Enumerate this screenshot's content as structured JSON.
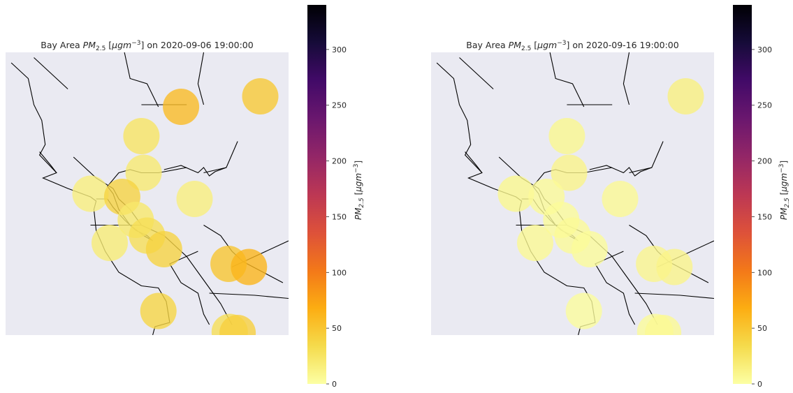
{
  "chart_data": {
    "type": "map-scatter",
    "colormap": "inferno_r",
    "colorbar": {
      "min": 0,
      "max": 340,
      "ticks": [
        0,
        50,
        100,
        150,
        200,
        250,
        300
      ],
      "label": "PM2.5 [μgm⁻³]",
      "label_parts": [
        "PM",
        "2.5",
        " [",
        "μgm",
        "−3",
        "]"
      ]
    },
    "background": "#eaeaf2",
    "marker_alpha": 0.8,
    "panels": [
      {
        "title_parts": [
          "Bay Area ",
          "PM",
          "2.5",
          " [",
          "μgm",
          "−3",
          "] on 2020-09-06 19:00:00"
        ],
        "stations": [
          {
            "lon": -122.1,
            "lat": 38.4,
            "pm25": 25
          },
          {
            "lon": -121.75,
            "lat": 38.68,
            "pm25": 57
          },
          {
            "lon": -121.05,
            "lat": 38.78,
            "pm25": 47
          },
          {
            "lon": -122.08,
            "lat": 38.05,
            "pm25": 20
          },
          {
            "lon": -122.55,
            "lat": 37.85,
            "pm25": 15
          },
          {
            "lon": -122.27,
            "lat": 37.82,
            "pm25": 40
          },
          {
            "lon": -121.63,
            "lat": 37.8,
            "pm25": 15
          },
          {
            "lon": -122.15,
            "lat": 37.6,
            "pm25": 22
          },
          {
            "lon": -122.05,
            "lat": 37.45,
            "pm25": 30
          },
          {
            "lon": -122.38,
            "lat": 37.38,
            "pm25": 18
          },
          {
            "lon": -121.9,
            "lat": 37.32,
            "pm25": 40
          },
          {
            "lon": -121.33,
            "lat": 37.18,
            "pm25": 50
          },
          {
            "lon": -121.15,
            "lat": 37.15,
            "pm25": 62
          },
          {
            "lon": -121.95,
            "lat": 36.73,
            "pm25": 38
          },
          {
            "lon": -121.32,
            "lat": 36.53,
            "pm25": 30
          },
          {
            "lon": -121.25,
            "lat": 36.52,
            "pm25": 42
          }
        ]
      },
      {
        "title_parts": [
          "Bay Area ",
          "PM",
          "2.5",
          " [",
          "μgm",
          "−3",
          "] on 2020-09-16 19:00:00"
        ],
        "stations": [
          {
            "lon": -122.1,
            "lat": 38.4,
            "pm25": 8
          },
          {
            "lon": -121.05,
            "lat": 38.78,
            "pm25": 14
          },
          {
            "lon": -122.08,
            "lat": 38.05,
            "pm25": 10
          },
          {
            "lon": -122.55,
            "lat": 37.85,
            "pm25": 8
          },
          {
            "lon": -122.28,
            "lat": 37.82,
            "pm25": 5
          },
          {
            "lon": -121.63,
            "lat": 37.8,
            "pm25": 6
          },
          {
            "lon": -122.15,
            "lat": 37.6,
            "pm25": 4
          },
          {
            "lon": -122.05,
            "lat": 37.45,
            "pm25": 5
          },
          {
            "lon": -122.38,
            "lat": 37.38,
            "pm25": 6
          },
          {
            "lon": -121.9,
            "lat": 37.32,
            "pm25": 4
          },
          {
            "lon": -121.33,
            "lat": 37.18,
            "pm25": 9
          },
          {
            "lon": -121.15,
            "lat": 37.15,
            "pm25": 10
          },
          {
            "lon": -121.95,
            "lat": 36.73,
            "pm25": 3
          },
          {
            "lon": -121.32,
            "lat": 36.53,
            "pm25": 4
          },
          {
            "lon": -121.25,
            "lat": 36.52,
            "pm25": 6
          }
        ]
      }
    ]
  }
}
